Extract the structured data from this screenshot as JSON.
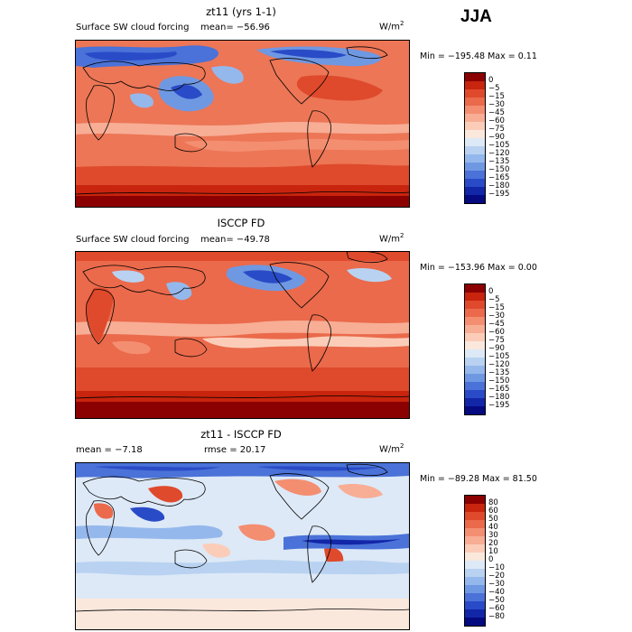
{
  "season": "JJA",
  "panels": [
    {
      "title": "zt11 (yrs 1-1)",
      "variable": "Surface SW cloud forcing",
      "stat_text": "mean= −56.96",
      "units_base": "W/m",
      "units_exp": "2",
      "minmax": "Min = −195.48 Max =    0.11",
      "colorbar_labels": [
        "0",
        "−5",
        "−15",
        "−30",
        "−45",
        "−60",
        "−75",
        "−90",
        "−105",
        "−120",
        "−135",
        "−150",
        "−165",
        "−180",
        "−195"
      ],
      "colorbar_colors": [
        "#8b0000",
        "#c8240e",
        "#df4a2c",
        "#ea6a4b",
        "#f48e71",
        "#f8ad95",
        "#fbcdb9",
        "#fbe8dc",
        "#dde9f7",
        "#b9d2f1",
        "#95b8ec",
        "#6f98e3",
        "#4a72d8",
        "#2a4bc7",
        "#1226a8",
        "#050a80"
      ]
    },
    {
      "title": "ISCCP FD",
      "variable": "Surface SW cloud forcing",
      "stat_text": "mean= −49.78",
      "units_base": "W/m",
      "units_exp": "2",
      "minmax": "Min = −153.96 Max =    0.00",
      "colorbar_labels": [
        "0",
        "−5",
        "−15",
        "−30",
        "−45",
        "−60",
        "−75",
        "−90",
        "−105",
        "−120",
        "−135",
        "−150",
        "−165",
        "−180",
        "−195"
      ],
      "colorbar_colors": [
        "#8b0000",
        "#c8240e",
        "#df4a2c",
        "#ea6a4b",
        "#f48e71",
        "#f8ad95",
        "#fbcdb9",
        "#fbe8dc",
        "#dde9f7",
        "#b9d2f1",
        "#95b8ec",
        "#6f98e3",
        "#4a72d8",
        "#2a4bc7",
        "#1226a8",
        "#050a80"
      ]
    },
    {
      "title": "zt11 - ISCCP FD",
      "stat_text": "mean =   −7.18",
      "rmse_text": "rmse =   20.17",
      "units_base": "W/m",
      "units_exp": "2",
      "minmax": "Min = −89.28 Max =  81.50",
      "colorbar_labels": [
        "80",
        "60",
        "50",
        "40",
        "30",
        "20",
        "10",
        "0",
        "−10",
        "−20",
        "−30",
        "−40",
        "−50",
        "−60",
        "−80"
      ],
      "colorbar_colors": [
        "#8b0000",
        "#c8240e",
        "#df4a2c",
        "#ea6a4b",
        "#f48e71",
        "#f8ad95",
        "#fbcdb9",
        "#fbe8dc",
        "#dde9f7",
        "#b9d2f1",
        "#95b8ec",
        "#6f98e3",
        "#4a72d8",
        "#2a4bc7",
        "#1226a8",
        "#050a80"
      ]
    }
  ]
}
